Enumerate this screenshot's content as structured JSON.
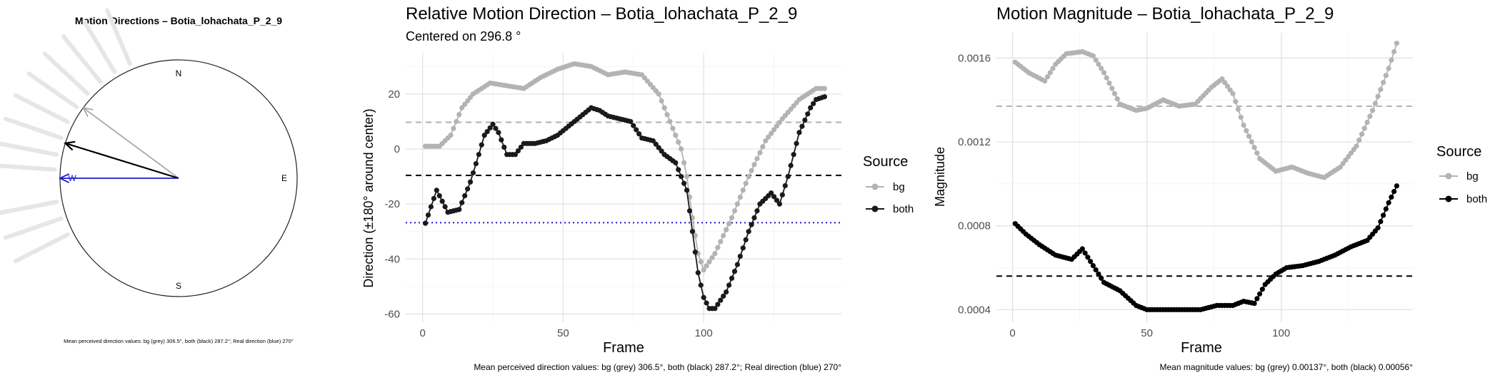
{
  "chart_data": [
    {
      "type": "compass",
      "title": "Motion Directions – Botia_lohachata_P_2_9",
      "cardinals": [
        "N",
        "E",
        "S",
        "W"
      ],
      "caption": "Mean perceived direction values: bg (grey) 306.5°, both (black) 287.2°; Real direction (blue) 270°",
      "arrows": [
        {
          "name": "bg",
          "angle_deg": 306.5,
          "color": "#aaaaaa"
        },
        {
          "name": "both",
          "angle_deg": 287.2,
          "color": "#000000"
        },
        {
          "name": "real",
          "angle_deg": 270,
          "color": "#1a1acc"
        }
      ],
      "rays_deg": [
        274,
        281,
        289,
        297,
        305,
        313,
        321,
        329,
        337,
        259,
        251,
        243
      ]
    },
    {
      "type": "line",
      "title": "Relative Motion Direction – Botia_lohachata_P_2_9",
      "subtitle": "Centered on  296.8 °",
      "xlabel": "Frame",
      "ylabel": "Direction (±180° around center)",
      "xlim": [
        -6,
        149
      ],
      "ylim": [
        -63,
        35
      ],
      "xticks": [
        0,
        50,
        100
      ],
      "yticks": [
        -60,
        -40,
        -20,
        0,
        20
      ],
      "legend_title": "Source",
      "legend_position": "right",
      "caption": "Mean perceived direction values: bg (grey) 306.5°, both (black) 287.2°; Real direction (blue) 270°",
      "series": [
        {
          "name": "bg",
          "color": "#b3b3b3",
          "x": [
            1,
            6,
            10,
            14,
            18,
            24,
            30,
            36,
            42,
            48,
            54,
            60,
            66,
            72,
            78,
            84,
            88,
            92,
            94,
            96,
            98,
            100,
            104,
            110,
            116,
            122,
            128,
            134,
            140,
            143
          ],
          "y": [
            1,
            1,
            5,
            15,
            20,
            24,
            23,
            22,
            26,
            29,
            31,
            30,
            27,
            28,
            27,
            20,
            10,
            0,
            -10,
            -25,
            -38,
            -44,
            -38,
            -25,
            -10,
            3,
            11,
            18,
            22,
            22
          ]
        },
        {
          "name": "both",
          "color": "#1a1a1a",
          "x": [
            1,
            5,
            9,
            13,
            17,
            20,
            22,
            25,
            27,
            30,
            33,
            36,
            40,
            44,
            48,
            54,
            60,
            63,
            66,
            70,
            74,
            78,
            82,
            86,
            90,
            94,
            96,
            98,
            100,
            102,
            104,
            108,
            112,
            116,
            120,
            124,
            127,
            130,
            134,
            138,
            140,
            143
          ],
          "y": [
            -27,
            -15,
            -23,
            -22,
            -12,
            -2,
            5,
            9,
            6,
            -2,
            -2,
            2,
            2,
            3,
            5,
            10,
            15,
            14,
            12,
            11,
            10,
            4,
            3,
            -2,
            -5,
            -15,
            -30,
            -45,
            -54,
            -58,
            -58,
            -52,
            -42,
            -30,
            -20,
            -16,
            -20,
            -10,
            6,
            15,
            18,
            19
          ]
        }
      ],
      "hlines": [
        {
          "y": 9.7,
          "color": "#b3b3b3",
          "style": "dashed"
        },
        {
          "y": -9.6,
          "color": "#000000",
          "style": "dashed"
        },
        {
          "y": -26.8,
          "color": "#1a1acc",
          "style": "dotted"
        }
      ]
    },
    {
      "type": "line",
      "title": "Motion Magnitude – Botia_lohachata_P_2_9",
      "xlabel": "Frame",
      "ylabel": "Magnitude",
      "xlim": [
        -6,
        149
      ],
      "ylim": [
        0.00034,
        0.00172
      ],
      "xticks": [
        0,
        50,
        100
      ],
      "ytick_labels": [
        "0.0004",
        "0.0008",
        "0.0012",
        "0.0016"
      ],
      "yticks": [
        0.0004,
        0.0008,
        0.0012,
        0.0016
      ],
      "legend_title": "Source",
      "legend_position": "right",
      "caption": "Mean magnitude values: bg (grey) 0.00137°, both (black) 0.00056°",
      "series": [
        {
          "name": "bg",
          "color": "#b3b3b3",
          "x": [
            1,
            6,
            12,
            16,
            20,
            26,
            30,
            34,
            40,
            46,
            50,
            56,
            62,
            68,
            74,
            78,
            82,
            86,
            92,
            98,
            104,
            110,
            116,
            122,
            128,
            134,
            140,
            143
          ],
          "y": [
            0.00158,
            0.00153,
            0.00149,
            0.00157,
            0.00162,
            0.00163,
            0.00161,
            0.00153,
            0.00138,
            0.00135,
            0.00136,
            0.0014,
            0.00137,
            0.00138,
            0.00146,
            0.0015,
            0.00143,
            0.00128,
            0.00112,
            0.00106,
            0.00108,
            0.00105,
            0.00103,
            0.00108,
            0.00118,
            0.00135,
            0.00155,
            0.00167
          ]
        },
        {
          "name": "both",
          "color": "#000000",
          "x": [
            1,
            5,
            10,
            16,
            22,
            26,
            30,
            34,
            40,
            46,
            50,
            56,
            62,
            66,
            70,
            76,
            82,
            86,
            90,
            94,
            98,
            102,
            108,
            114,
            120,
            126,
            132,
            136,
            140,
            143
          ],
          "y": [
            0.00081,
            0.00076,
            0.00071,
            0.00066,
            0.00064,
            0.00069,
            0.00061,
            0.00053,
            0.00049,
            0.00042,
            0.0004,
            0.0004,
            0.0004,
            0.0004,
            0.0004,
            0.00042,
            0.00042,
            0.00044,
            0.00043,
            0.00052,
            0.00057,
            0.0006,
            0.00061,
            0.00063,
            0.00066,
            0.0007,
            0.00073,
            0.00079,
            0.00091,
            0.00099
          ]
        }
      ],
      "hlines": [
        {
          "y": 0.00137,
          "color": "#b3b3b3",
          "style": "dashed"
        },
        {
          "y": 0.00056,
          "color": "#000000",
          "style": "dashed"
        }
      ]
    }
  ]
}
